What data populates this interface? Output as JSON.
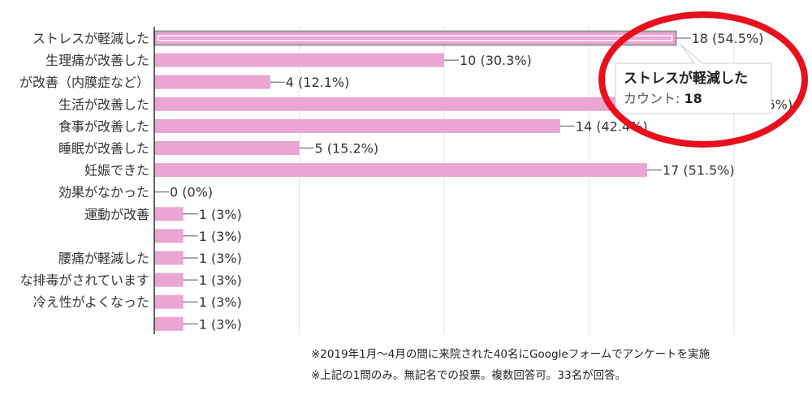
{
  "chart_data": {
    "type": "bar",
    "orientation": "horizontal",
    "categories": [
      "ストレスが軽減した",
      "生理痛が改善した",
      "が改善（内膜症など）",
      "生活が改善した",
      "食事が改善した",
      "睡眠が改善した",
      "妊娠できた",
      "効果がなかった",
      "運動が改善",
      "",
      "腰痛が軽減した",
      "な排毒がされています",
      "冷え性がよくなった",
      ""
    ],
    "values": [
      18,
      10,
      4,
      19,
      14,
      5,
      17,
      0,
      1,
      1,
      1,
      1,
      1,
      1
    ],
    "value_labels": [
      "18 (54.5%)",
      "10 (30.3%)",
      "4 (12.1%)",
      "19 (57.6%)",
      "14 (42.4%)",
      "5 (15.2%)",
      "17 (51.5%)",
      "0 (0%)",
      "1 (3%)",
      "1 (3%)",
      "1 (3%)",
      "1 (3%)",
      "1 (3%)",
      "1 (3%)"
    ],
    "xlim": [
      0,
      20
    ],
    "grid_values": [
      5,
      10,
      15,
      20
    ],
    "bar_color": "#eaa5d3",
    "highlight_index": 0,
    "tooltip": {
      "title": "ストレスが軽減した",
      "count_label": "カウント:",
      "count_value": "18"
    },
    "annotation_color": "#e8101c"
  },
  "notes": [
    "※2019年1月～4月の間に来院された40名にGoogleフォームでアンケートを実施",
    "※上記の1問のみ。無記名での投票。複数回答可。33名が回答。"
  ]
}
